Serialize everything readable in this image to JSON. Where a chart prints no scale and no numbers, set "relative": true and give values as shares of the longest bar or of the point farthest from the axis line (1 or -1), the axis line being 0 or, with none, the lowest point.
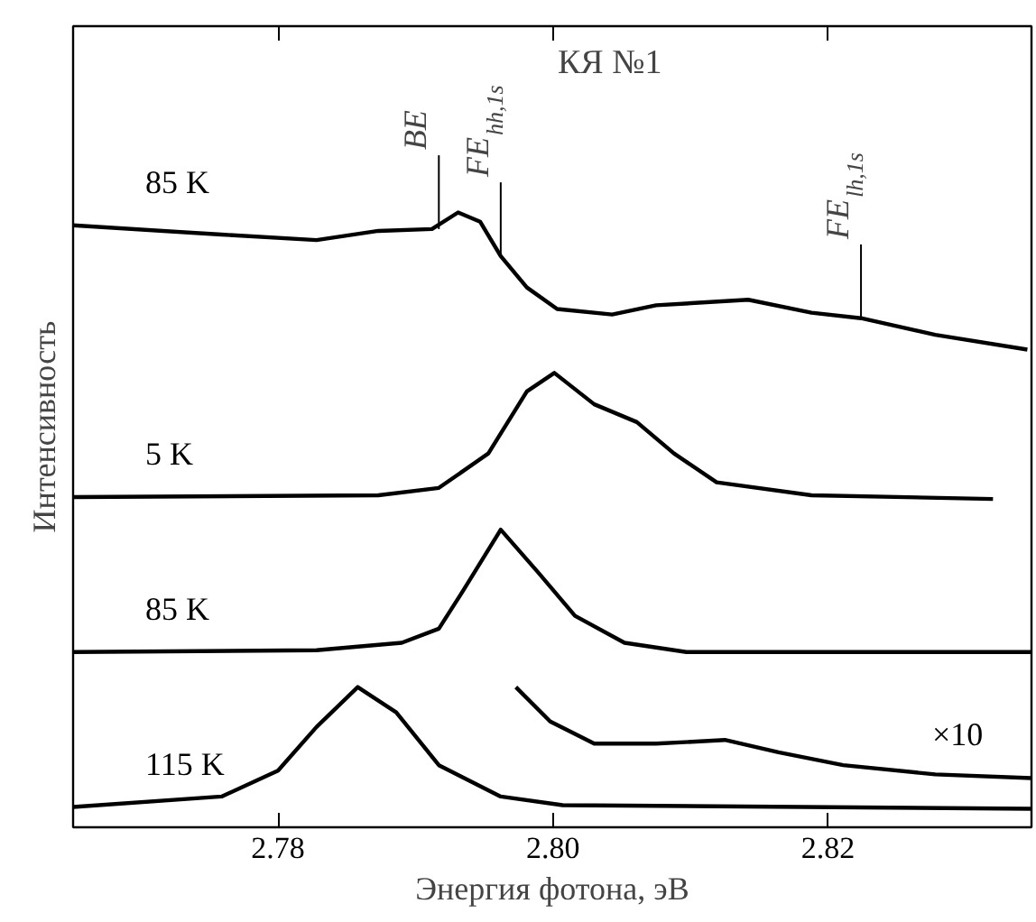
{
  "chart_data": {
    "type": "line",
    "relative": true,
    "xlabel": "Энергия фотона, эВ",
    "ylabel": "Интенсивность",
    "xlim": [
      2.7651,
      2.8348
    ],
    "xticks": [
      {
        "value": 2.78,
        "label": "2.78"
      },
      {
        "value": 2.8,
        "label": "2.80"
      },
      {
        "value": 2.82,
        "label": "2.82"
      }
    ],
    "tick_labels": "x",
    "grid": false,
    "marker": "none",
    "line_style": "solid",
    "annotations": [
      "КЯ №1",
      {
        "text": "BE",
        "x": 2.7917,
        "y": 0.973
      },
      {
        "text": "FE$_{hh,1s}$",
        "x": 2.7962,
        "y": 0.929
      },
      {
        "text": "FE$_{lh,1s}$",
        "x": 2.8224,
        "y": 0.828
      }
    ],
    "series": [
      {
        "name": "85 K",
        "color": "#000000",
        "x": [
          2.7651,
          2.7759,
          2.7828,
          2.7873,
          2.7912,
          2.7931,
          2.7947,
          2.7962,
          2.7981,
          2.8003,
          2.8043,
          2.8075,
          2.8142,
          2.8188,
          2.8224,
          2.8278,
          2.8345
        ],
        "values": [
          0.979,
          0.964,
          0.955,
          0.97,
          0.973,
          1.0,
          0.985,
          0.929,
          0.878,
          0.843,
          0.834,
          0.849,
          0.858,
          0.837,
          0.828,
          0.801,
          0.777
        ]
      },
      {
        "name": "5 K",
        "color": "#000000",
        "x": [
          2.7651,
          2.7873,
          2.7917,
          2.7953,
          2.7981,
          2.8001,
          2.803,
          2.8061,
          2.8088,
          2.8119,
          2.8188,
          2.832
        ],
        "values": [
          0.537,
          0.54,
          0.552,
          0.608,
          0.709,
          0.739,
          0.688,
          0.659,
          0.608,
          0.561,
          0.54,
          0.534
        ]
      },
      {
        "name": "85 K",
        "color": "#000000",
        "x": [
          2.7651,
          2.7828,
          2.789,
          2.7917,
          2.7935,
          2.7962,
          2.7989,
          2.8016,
          2.8052,
          2.8097,
          2.8348
        ],
        "values": [
          0.285,
          0.288,
          0.3,
          0.323,
          0.386,
          0.484,
          0.415,
          0.344,
          0.3,
          0.285,
          0.285
        ]
      },
      {
        "name": "115 K",
        "color": "#000000",
        "x": [
          2.7651,
          2.7759,
          2.78,
          2.7828,
          2.7858,
          2.7886,
          2.7917,
          2.7962,
          2.8007,
          2.8348
        ],
        "values": [
          0.033,
          0.05,
          0.092,
          0.163,
          0.228,
          0.187,
          0.101,
          0.05,
          0.036,
          0.03
        ]
      },
      {
        "name": "×10",
        "color": "#000000",
        "x": [
          2.7973,
          2.7998,
          2.803,
          2.8075,
          2.8125,
          2.8164,
          2.8211,
          2.8278,
          2.8348
        ],
        "values": [
          0.228,
          0.172,
          0.136,
          0.136,
          0.142,
          0.122,
          0.101,
          0.086,
          0.08
        ]
      }
    ]
  }
}
